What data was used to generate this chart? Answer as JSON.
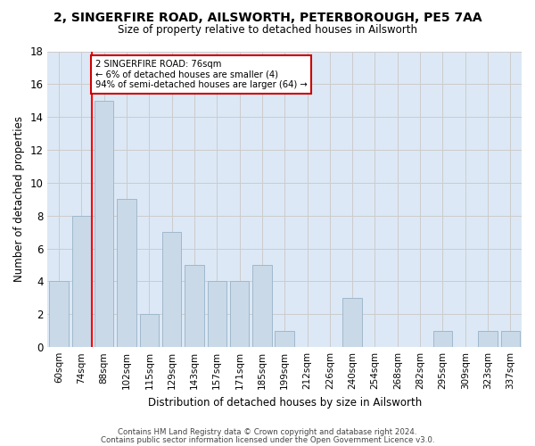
{
  "title": "2, SINGERFIRE ROAD, AILSWORTH, PETERBOROUGH, PE5 7AA",
  "subtitle": "Size of property relative to detached houses in Ailsworth",
  "xlabel": "Distribution of detached houses by size in Ailsworth",
  "ylabel": "Number of detached properties",
  "footer_line1": "Contains HM Land Registry data © Crown copyright and database right 2024.",
  "footer_line2": "Contains public sector information licensed under the Open Government Licence v3.0.",
  "categories": [
    "60sqm",
    "74sqm",
    "88sqm",
    "102sqm",
    "115sqm",
    "129sqm",
    "143sqm",
    "157sqm",
    "171sqm",
    "185sqm",
    "199sqm",
    "212sqm",
    "226sqm",
    "240sqm",
    "254sqm",
    "268sqm",
    "282sqm",
    "295sqm",
    "309sqm",
    "323sqm",
    "337sqm"
  ],
  "values": [
    4,
    8,
    15,
    9,
    2,
    7,
    5,
    4,
    4,
    5,
    1,
    0,
    0,
    3,
    0,
    0,
    0,
    1,
    0,
    1,
    1
  ],
  "bar_color": "#c9d9e8",
  "bar_edge_color": "#a0b8cc",
  "grid_color": "#cccccc",
  "background_color": "#dce8f5",
  "red_line_x": 1.45,
  "annotation_line1": "2 SINGERFIRE ROAD: 76sqm",
  "annotation_line2": "← 6% of detached houses are smaller (4)",
  "annotation_line3": "94% of semi-detached houses are larger (64) →",
  "annotation_box_color": "#cc0000",
  "ylim": [
    0,
    18
  ],
  "yticks": [
    0,
    2,
    4,
    6,
    8,
    10,
    12,
    14,
    16,
    18
  ]
}
